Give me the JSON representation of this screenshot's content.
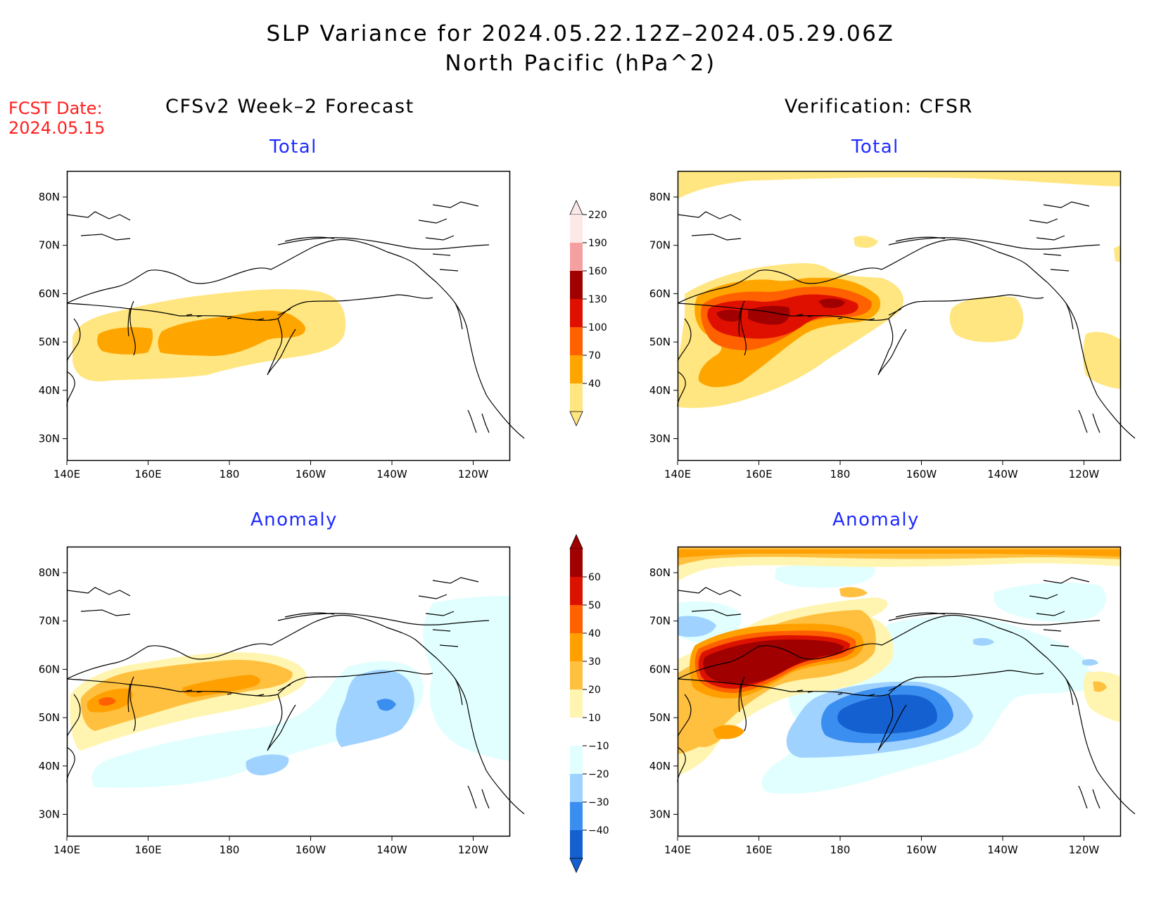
{
  "header": {
    "title_line1": "SLP Variance for 2024.05.22.12Z–2024.05.29.06Z",
    "title_line2": "North Pacific (hPa^2)",
    "fcst_line1": "FCST Date:",
    "fcst_line2": "2024.05.15"
  },
  "columns": {
    "left": "CFSv2 Week–2 Forecast",
    "right": "Verification: CFSR"
  },
  "rows": {
    "top": "Total",
    "bottom": "Anomaly"
  },
  "axes": {
    "lat_labels": [
      "80N",
      "70N",
      "60N",
      "50N",
      "40N",
      "30N"
    ],
    "lon_labels": [
      "140E",
      "160E",
      "180",
      "160W",
      "140W",
      "120W"
    ]
  },
  "colors": {
    "total_scale": [
      "#ffe680",
      "#ffa500",
      "#ff6000",
      "#e01000",
      "#a00000",
      "#f5a0a0",
      "#fde8e8"
    ],
    "anomaly_warm": [
      "#fff5b0",
      "#ffc040",
      "#ffa000",
      "#ff6000",
      "#dc1200",
      "#a00000"
    ],
    "anomaly_cool": [
      "#e0fffe",
      "#a0d2ff",
      "#3a8ef0",
      "#1560d0"
    ],
    "title_blue": "#1f2bff",
    "fcst_red": "#ff1f1f"
  },
  "colorbars": {
    "total": {
      "labels": [
        "40",
        "70",
        "100",
        "130",
        "160",
        "190",
        "220"
      ]
    },
    "anomaly": {
      "labels": [
        "−40",
        "−30",
        "−20",
        "−10",
        "10",
        "20",
        "30",
        "40",
        "50",
        "60"
      ]
    }
  }
}
